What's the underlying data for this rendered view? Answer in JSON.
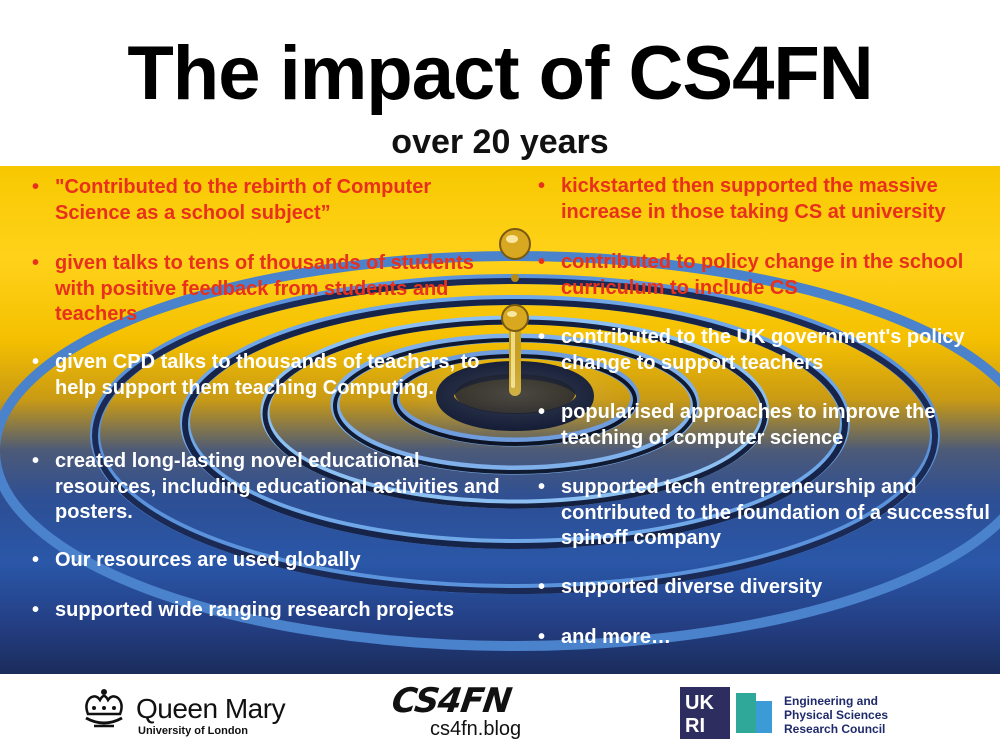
{
  "slide": {
    "title": "The impact of CS4FN",
    "subtitle": "over 20 years"
  },
  "left_points": [
    "\"Contributed to the rebirth of Computer Science as a school subject”",
    "given talks to tens of thousands of students with positive feedback from students and teachers",
    "given CPD talks to thousands of teachers, to help support them teaching Computing.",
    "created long-lasting novel educational resources, including educational activities and posters.",
    "Our resources are used globally",
    "supported wide ranging research projects"
  ],
  "right_points": [
    "kickstarted then supported the massive increase in those taking CS at university",
    "contributed to policy change in the school curriculum to include CS",
    "contributed to the UK government's policy change to support teachers",
    "popularised approaches to improve the teaching of computer science",
    "supported tech entrepreneurship and contributed to the foundation of a successful spinoff company",
    "supported diverse diversity",
    "and more…"
  ],
  "footer": {
    "qmul_name": "Queen Mary",
    "qmul_sub": "University of London",
    "cs4fn_logo": "CS4FN",
    "cs4fn_url": "cs4fn.blog",
    "ukri_logo": "UKRI",
    "epsrc_line1": "Engineering and",
    "epsrc_line2": "Physical Sciences",
    "epsrc_line3": "Research Council"
  },
  "colors": {
    "highlight_text": "#e8301c",
    "body_text": "#ffffff",
    "title_text": "#000000"
  },
  "background_image": "water-droplet-ripples"
}
